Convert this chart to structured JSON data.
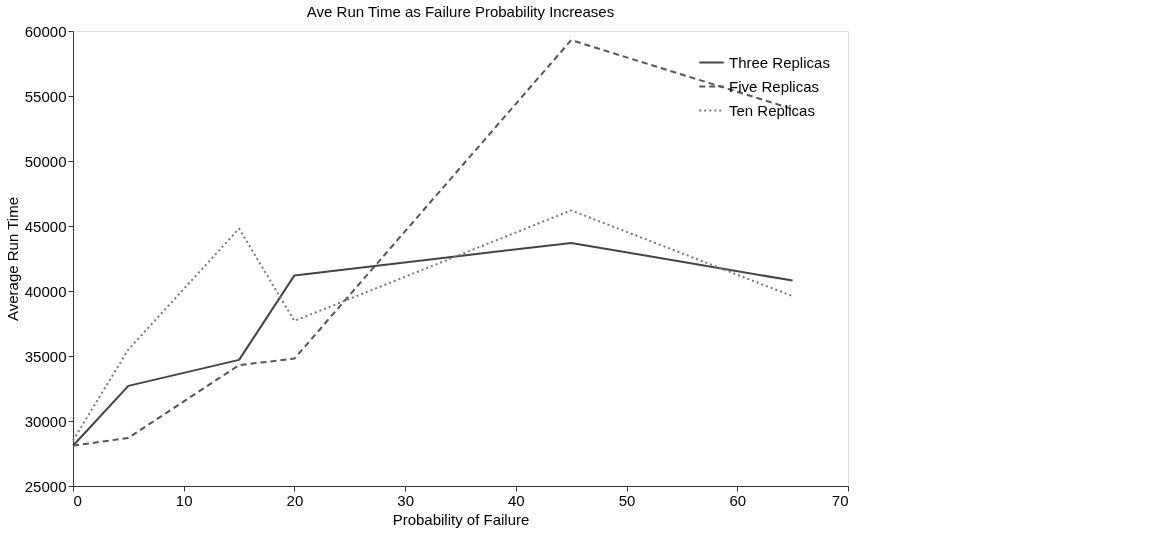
{
  "chart_data": {
    "type": "line",
    "title": "Ave Run Time as Failure Probability Increases",
    "xlabel": "Probability of Failure",
    "ylabel": "Average Run Time",
    "x": [
      0,
      5,
      15,
      20,
      45,
      65
    ],
    "series": [
      {
        "name": "Three Replicas",
        "color": "#444444",
        "line_style": "solid",
        "values": [
          28100,
          32700,
          34700,
          41200,
          43700,
          40800
        ]
      },
      {
        "name": "Five Replicas",
        "color": "#555555",
        "line_style": "dashed",
        "values": [
          28100,
          28700,
          34300,
          34800,
          59300,
          54000
        ]
      },
      {
        "name": "Ten Replicas",
        "color": "#777777",
        "line_style": "dotted",
        "values": [
          28500,
          35500,
          44800,
          37700,
          46200,
          39600
        ]
      }
    ],
    "xlim": [
      0,
      70
    ],
    "xticks": [
      0,
      10,
      20,
      30,
      40,
      50,
      60,
      70
    ],
    "ylim": [
      25000,
      60000
    ],
    "yticks": [
      25000,
      30000,
      35000,
      40000,
      45000,
      50000,
      55000,
      60000
    ],
    "grid": false,
    "legend": "top right",
    "marker": "none"
  }
}
